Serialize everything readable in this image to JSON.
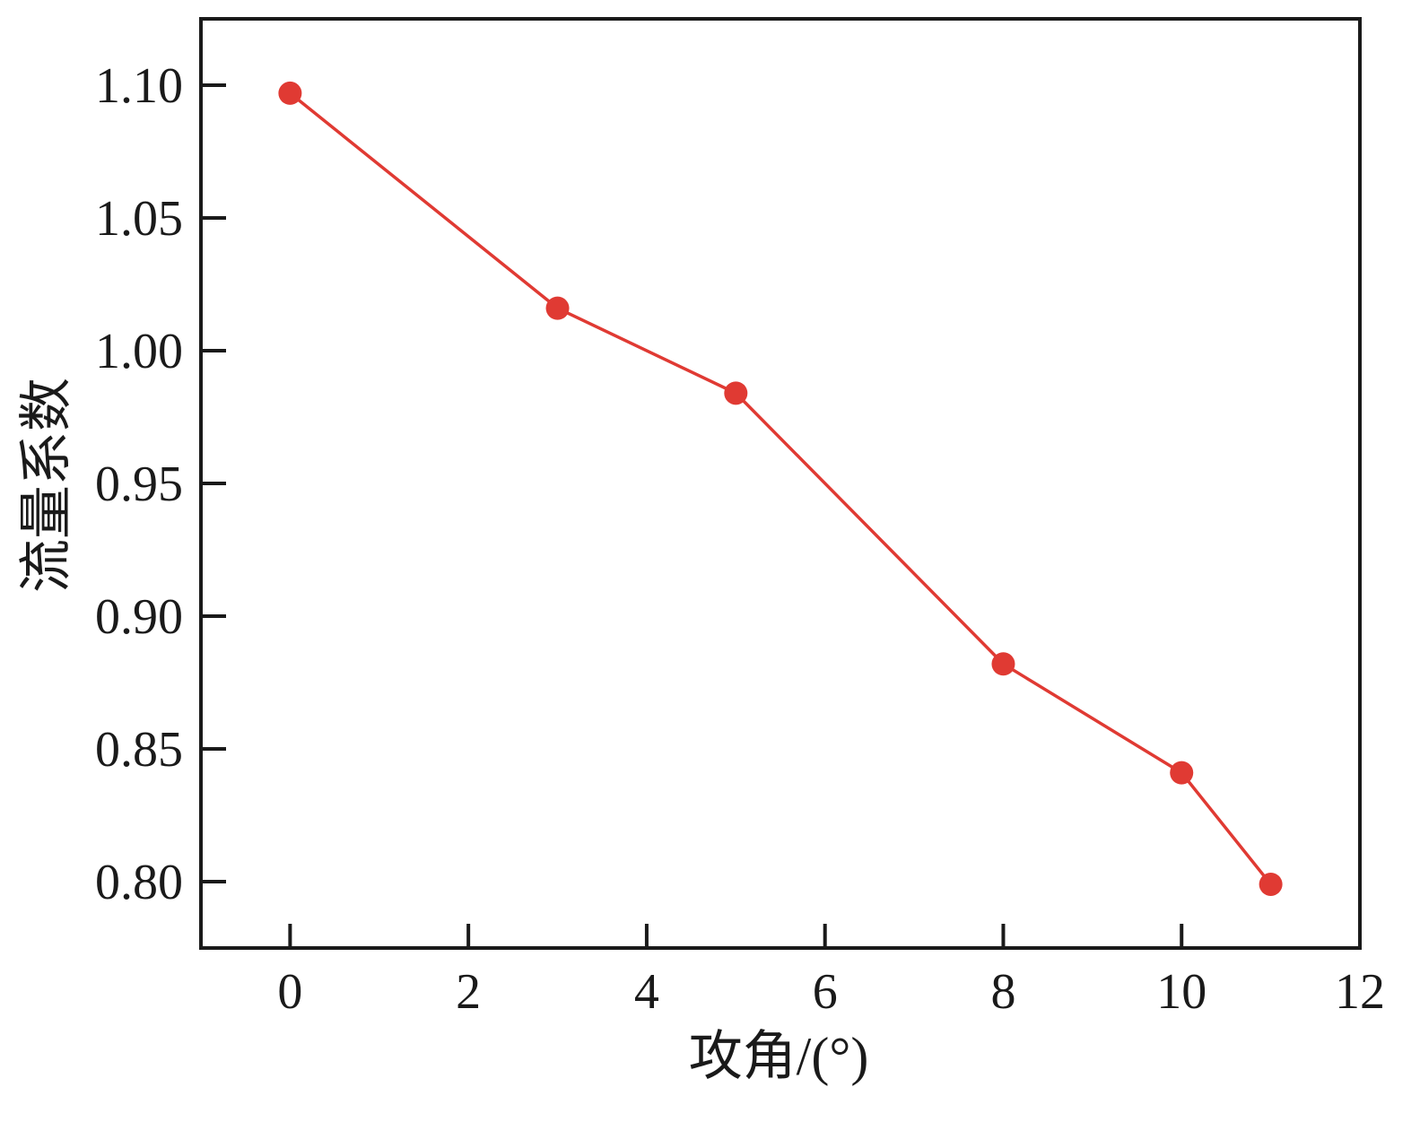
{
  "chart_data": {
    "type": "line",
    "title": "",
    "xlabel": "攻角/(°)",
    "ylabel": "流量系数",
    "xlim": [
      -1,
      12
    ],
    "ylim": [
      0.775,
      1.125
    ],
    "xticks": [
      0,
      2,
      4,
      6,
      8,
      10,
      12
    ],
    "xtick_labels": [
      "0",
      "2",
      "4",
      "6",
      "8",
      "10",
      "12"
    ],
    "yticks": [
      0.8,
      0.85,
      0.9,
      0.95,
      1.0,
      1.05,
      1.1
    ],
    "ytick_labels": [
      "0.80",
      "0.85",
      "0.90",
      "0.95",
      "1.00",
      "1.05",
      "1.10"
    ],
    "grid": false,
    "series": [
      {
        "color": "#e03a33",
        "marker": "circle",
        "x": [
          0,
          3,
          5,
          8,
          10,
          11
        ],
        "y": [
          1.097,
          1.016,
          0.984,
          0.882,
          0.841,
          0.799
        ]
      }
    ]
  }
}
